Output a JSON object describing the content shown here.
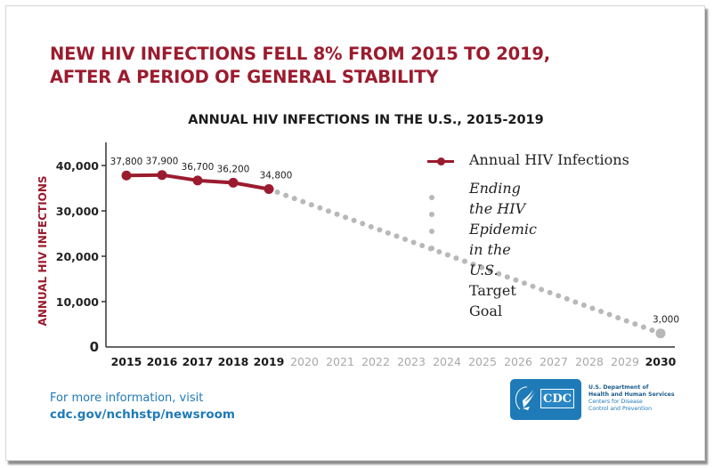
{
  "headline": [
    "NEW HIV INFECTIONS FELL 8% FROM 2015 TO 2019,",
    "AFTER A PERIOD OF GENERAL STABILITY"
  ],
  "colors": {
    "accent": "#9b1b2e",
    "target": "#b8b8b8",
    "link": "#1f7ab8",
    "axis": "#333333"
  },
  "chart_data": {
    "type": "line",
    "title": "ANNUAL HIV INFECTIONS IN THE U.S., 2015-2019",
    "xlabel": "",
    "ylabel": "ANNUAL HIV INFECTIONS",
    "ylim": [
      0,
      40000
    ],
    "yticks": [
      0,
      10000,
      20000,
      30000,
      40000
    ],
    "ytick_labels": [
      "0",
      "10,000",
      "20,000",
      "30,000",
      "40,000"
    ],
    "x": [
      2015,
      2016,
      2017,
      2018,
      2019,
      2020,
      2021,
      2022,
      2023,
      2024,
      2025,
      2026,
      2027,
      2028,
      2029,
      2030
    ],
    "xtick_labels": [
      "2015",
      "2016",
      "2017",
      "2018",
      "2019",
      "2020",
      "2021",
      "2022",
      "2023",
      "2024",
      "2025",
      "2026",
      "2027",
      "2028",
      "2029",
      "2030"
    ],
    "xtick_emphasized": [
      2015,
      2016,
      2017,
      2018,
      2019,
      2030
    ],
    "series": [
      {
        "name": "Annual HIV Infections",
        "style": "solid",
        "x": [
          2015,
          2016,
          2017,
          2018,
          2019
        ],
        "values": [
          37800,
          37900,
          36700,
          36200,
          34800
        ],
        "labels": [
          "37,800",
          "37,900",
          "36,700",
          "36,200",
          "34,800"
        ]
      },
      {
        "name": "Ending the HIV Epidemic in the U.S. Target Goal",
        "style": "dotted",
        "x": [
          2019,
          2030
        ],
        "values": [
          34800,
          3000
        ],
        "labels": [
          "",
          "3,000"
        ]
      }
    ],
    "legend": {
      "position": "top-right",
      "entries": [
        {
          "label": "Annual HIV Infections"
        },
        {
          "label_italic_1": "Ending the HIV Epidemic",
          "label_italic_2": "in the U.S.",
          "label_regular": " Target Goal"
        }
      ]
    },
    "grid": false
  },
  "footer": {
    "line1": "For more information, visit",
    "link": "cdc.gov/nchhstp/newsroom"
  },
  "logo": {
    "mark": "CDC",
    "agency_lines": [
      "U.S. Department of",
      "Health and Human Services",
      "Centers for Disease",
      "Control and Prevention"
    ]
  }
}
